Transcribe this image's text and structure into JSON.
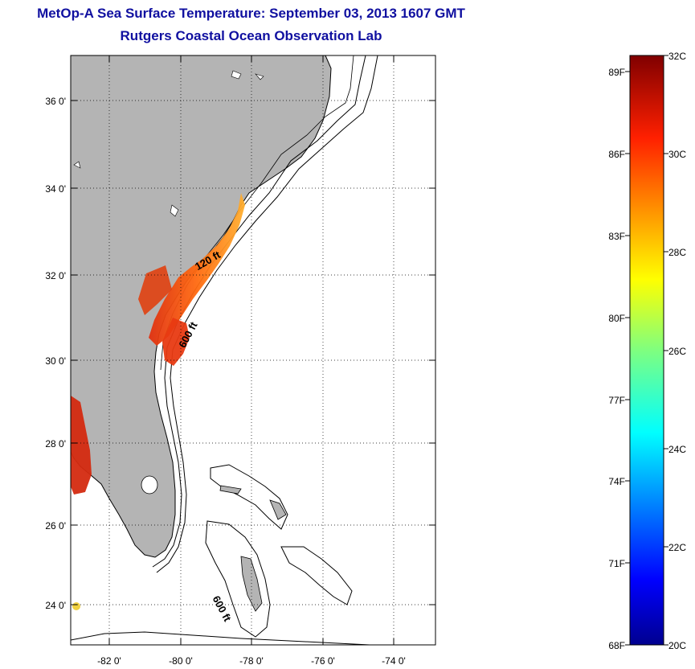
{
  "map": {
    "title": "MetOp-A Sea Surface Temperature:  September 03, 2013 1607 GMT",
    "subtitle": "Rutgers Coastal Ocean Observation Lab",
    "lat_ticks": [
      "36 0'",
      "34 0'",
      "32 0'",
      "30 0'",
      "28 0'",
      "26 0'",
      "24 0'"
    ],
    "lon_ticks": [
      "-82 0'",
      "-80 0'",
      "-78 0'",
      "-76 0'",
      "-74 0'"
    ],
    "contour_labels": [
      "120 ft",
      "600 ft",
      "600 ft"
    ],
    "colors": {
      "land": "#b4b4b4",
      "ocean": "#ffffff",
      "title": "#1010a0"
    }
  },
  "colorbar": {
    "fahrenheit_ticks": [
      "89F",
      "86F",
      "83F",
      "80F",
      "77F",
      "74F",
      "71F",
      "68F"
    ],
    "celsius_ticks": [
      "32C",
      "30C",
      "28C",
      "26C",
      "24C",
      "22C",
      "20C"
    ],
    "min_c": 20,
    "max_c": 32
  }
}
